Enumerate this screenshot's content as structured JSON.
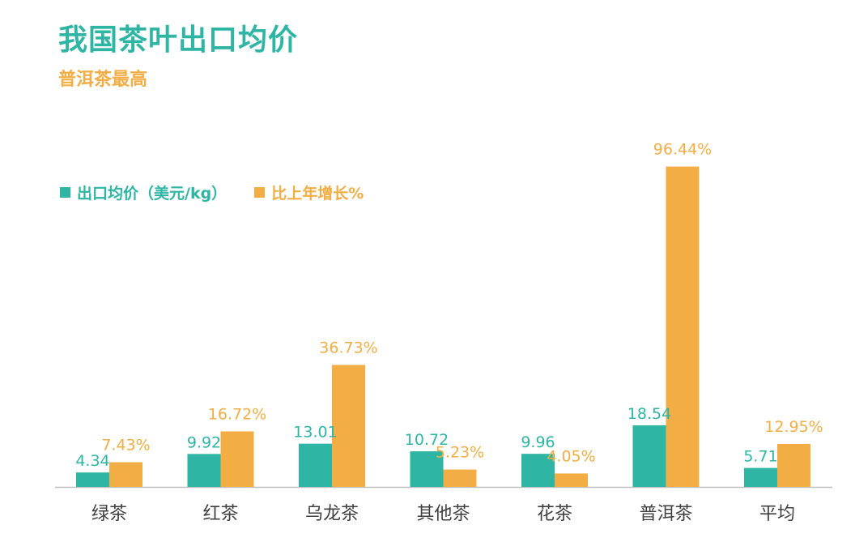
{
  "title": "我国茶叶出口均价",
  "subtitle": "普洱茶最高",
  "colors": {
    "title": "#2fb5a4",
    "subtitle": "#f2ae45",
    "series1": "#2fb5a4",
    "series2": "#f2ae45",
    "axis": "#bfbfbf",
    "tick": "#404040"
  },
  "chart_data": {
    "type": "bar",
    "categories": [
      "绿茶",
      "红茶",
      "乌龙茶",
      "其他茶",
      "花茶",
      "普洱茶",
      "平均"
    ],
    "series": [
      {
        "name": "出口均价（美元/kg）",
        "values": [
          4.34,
          9.92,
          13.01,
          10.72,
          9.96,
          18.54,
          5.71
        ],
        "labels": [
          "4.34",
          "9.92",
          "13.01",
          "10.72",
          "9.96",
          "18.54",
          "5.71"
        ]
      },
      {
        "name": "比上年增长%",
        "values": [
          7.43,
          16.72,
          36.73,
          5.23,
          4.05,
          96.44,
          12.95
        ],
        "labels": [
          "7.43%",
          "16.72%",
          "36.73%",
          "5.23%",
          "4.05%",
          "96.44%",
          "12.95%"
        ]
      }
    ],
    "legend_position": "top-left",
    "grid": false
  }
}
